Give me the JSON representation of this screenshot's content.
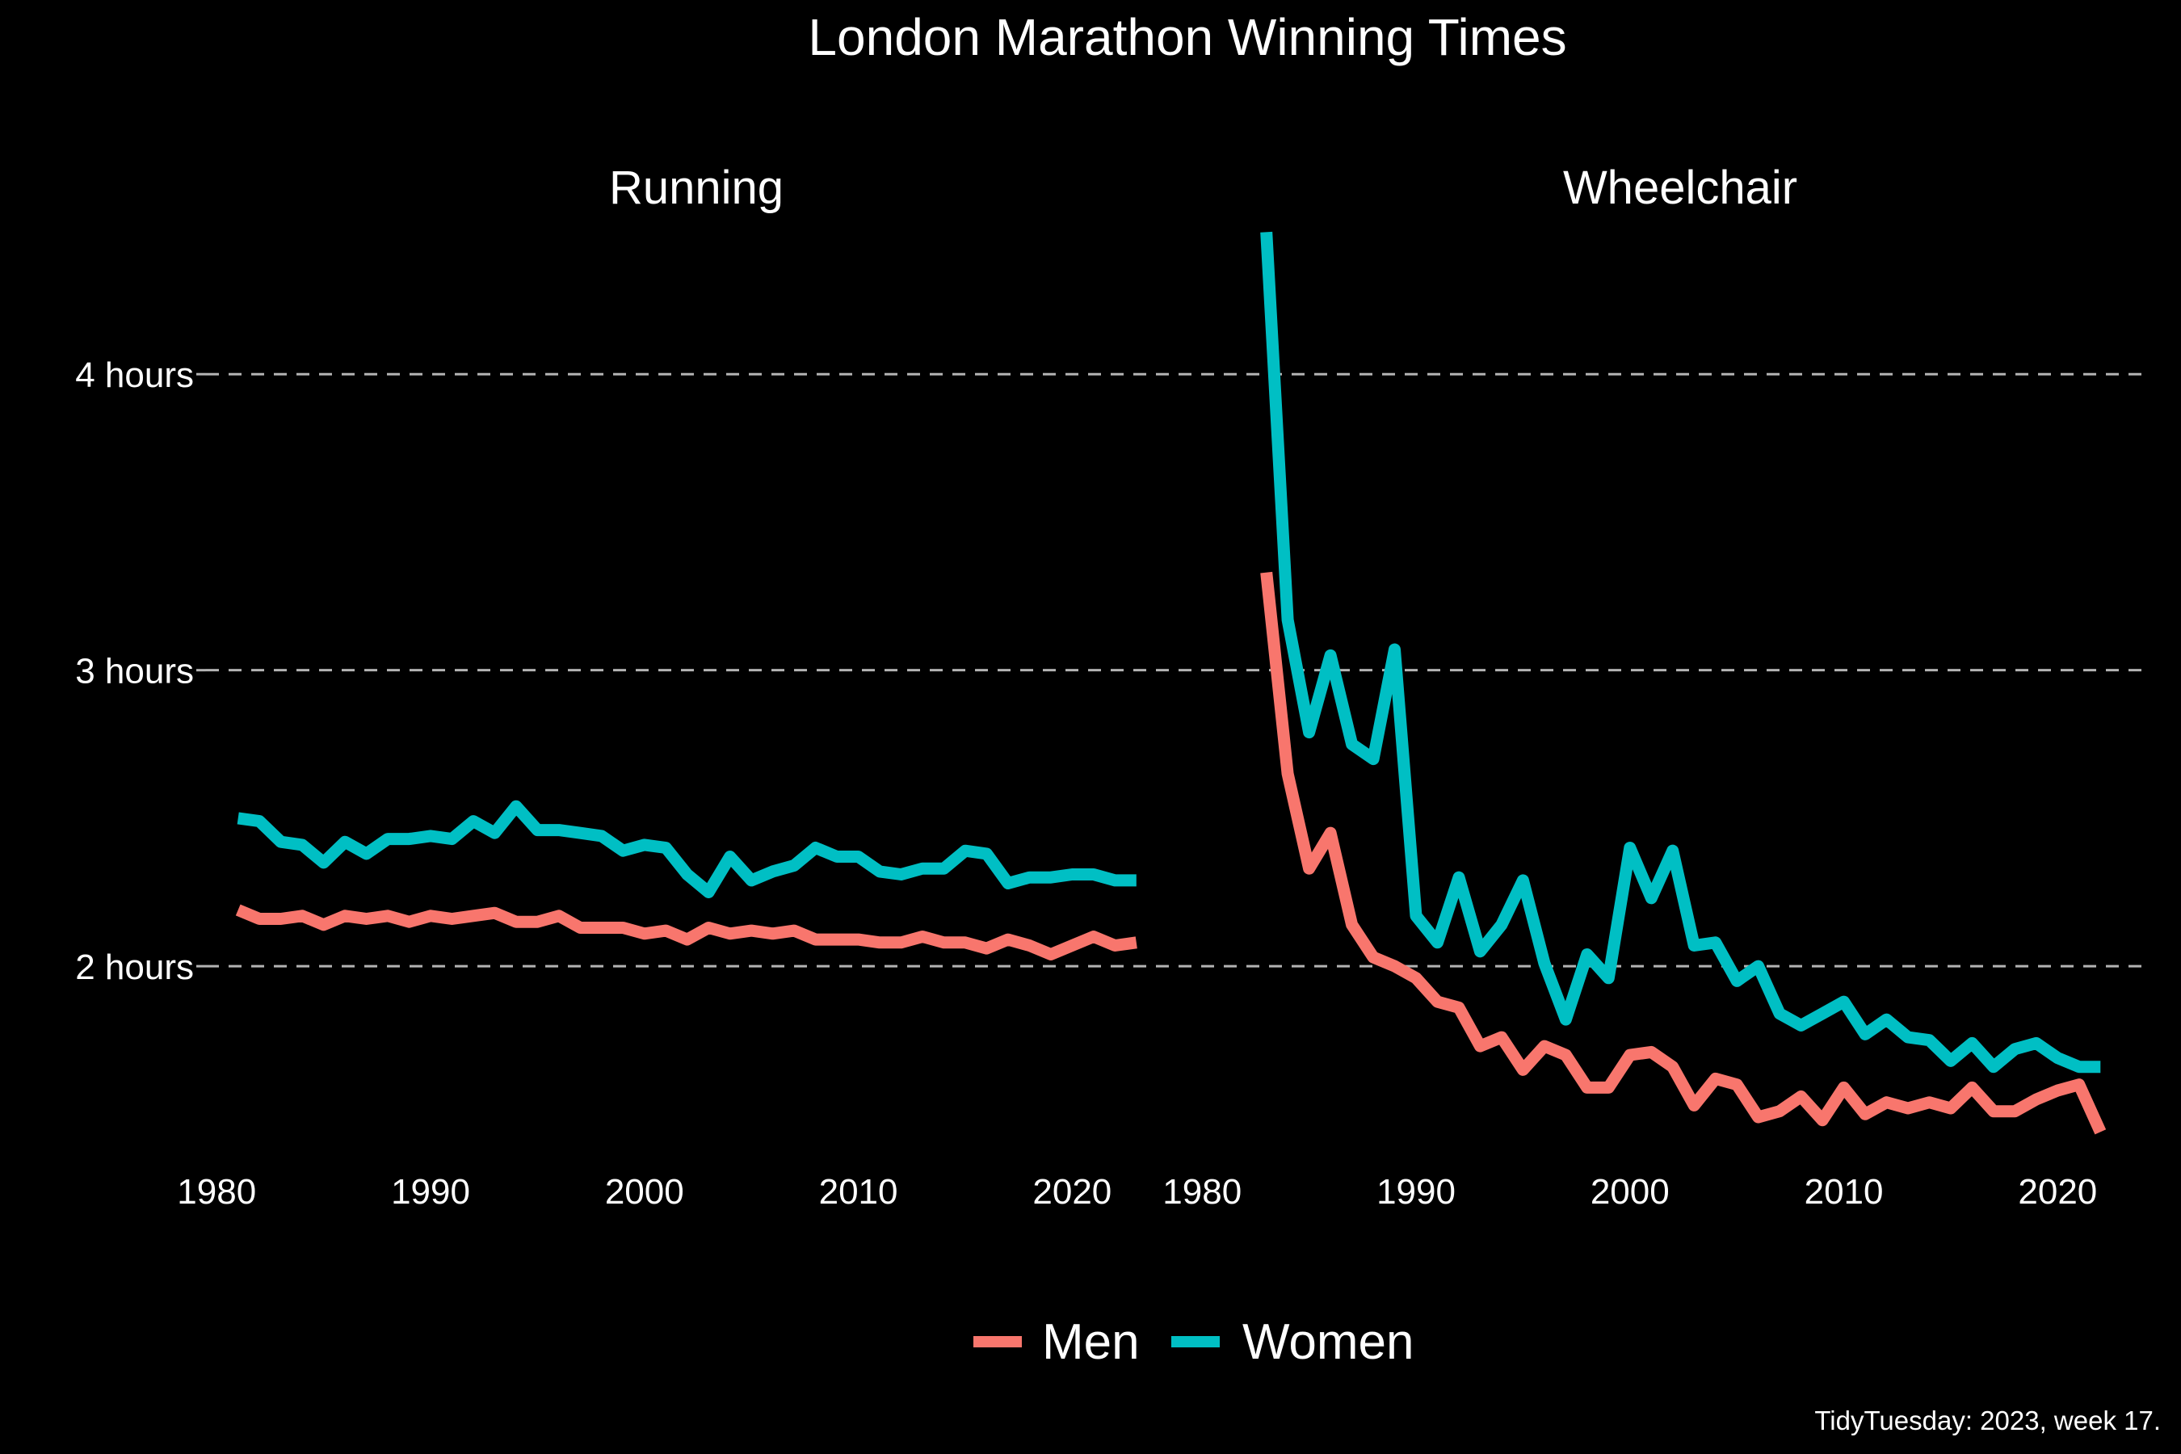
{
  "chart_data": {
    "type": "line",
    "title": "London Marathon Winning Times",
    "caption": "TidyTuesday: 2023, week 17.",
    "y_tick_labels": [
      "2 hours",
      "3 hours",
      "4 hours"
    ],
    "y_ticks": [
      2,
      3,
      4
    ],
    "ylim": [
      1.43,
      4.5
    ],
    "x_ticks": [
      1980,
      1990,
      2000,
      2010,
      2020
    ],
    "grid": "horizontal dashed",
    "legend_position": "bottom",
    "legend": [
      {
        "name": "Men",
        "color": "#F8766D"
      },
      {
        "name": "Women",
        "color": "#00BFC4"
      }
    ],
    "panels": [
      {
        "title": "Running",
        "xlim": [
          1979.5,
          2023.5
        ],
        "series": [
          {
            "name": "Men",
            "color": "#F8766D",
            "x": [
              1981,
              1982,
              1983,
              1984,
              1985,
              1986,
              1987,
              1988,
              1989,
              1990,
              1991,
              1992,
              1993,
              1994,
              1995,
              1996,
              1997,
              1998,
              1999,
              2000,
              2001,
              2002,
              2003,
              2004,
              2005,
              2006,
              2007,
              2008,
              2009,
              2010,
              2011,
              2012,
              2013,
              2014,
              2015,
              2016,
              2017,
              2018,
              2019,
              2020,
              2021,
              2022,
              2023
            ],
            "y": [
              2.19,
              2.16,
              2.16,
              2.17,
              2.14,
              2.17,
              2.16,
              2.17,
              2.15,
              2.17,
              2.16,
              2.17,
              2.18,
              2.15,
              2.15,
              2.17,
              2.13,
              2.13,
              2.13,
              2.11,
              2.12,
              2.09,
              2.13,
              2.11,
              2.12,
              2.11,
              2.12,
              2.09,
              2.09,
              2.09,
              2.08,
              2.08,
              2.1,
              2.08,
              2.08,
              2.06,
              2.09,
              2.07,
              2.04,
              2.07,
              2.1,
              2.07,
              2.08
            ]
          },
          {
            "name": "Women",
            "color": "#00BFC4",
            "x": [
              1981,
              1982,
              1983,
              1984,
              1985,
              1986,
              1987,
              1988,
              1989,
              1990,
              1991,
              1992,
              1993,
              1994,
              1995,
              1996,
              1997,
              1998,
              1999,
              2000,
              2001,
              2002,
              2003,
              2004,
              2005,
              2006,
              2007,
              2008,
              2009,
              2010,
              2011,
              2012,
              2013,
              2014,
              2015,
              2016,
              2017,
              2018,
              2019,
              2020,
              2021,
              2022,
              2023
            ],
            "y": [
              2.5,
              2.49,
              2.42,
              2.41,
              2.35,
              2.42,
              2.38,
              2.43,
              2.43,
              2.44,
              2.43,
              2.49,
              2.45,
              2.54,
              2.46,
              2.46,
              2.45,
              2.44,
              2.39,
              2.41,
              2.4,
              2.31,
              2.25,
              2.37,
              2.29,
              2.32,
              2.34,
              2.4,
              2.37,
              2.37,
              2.32,
              2.31,
              2.33,
              2.33,
              2.39,
              2.38,
              2.28,
              2.3,
              2.3,
              2.31,
              2.31,
              2.29,
              2.29
            ]
          }
        ]
      },
      {
        "title": "Wheelchair",
        "xlim": [
          1979.5,
          2023.5
        ],
        "series": [
          {
            "name": "Men",
            "color": "#F8766D",
            "x": [
              1983,
              1984,
              1985,
              1986,
              1987,
              1988,
              1989,
              1990,
              1991,
              1992,
              1993,
              1994,
              1995,
              1996,
              1997,
              1998,
              1999,
              2000,
              2001,
              2002,
              2003,
              2004,
              2005,
              2006,
              2007,
              2008,
              2009,
              2010,
              2011,
              2012,
              2013,
              2014,
              2015,
              2016,
              2017,
              2018,
              2019,
              2020,
              2021,
              2022
            ],
            "y": [
              3.33,
              2.65,
              2.33,
              2.45,
              2.14,
              2.03,
              2.0,
              1.96,
              1.88,
              1.86,
              1.73,
              1.76,
              1.65,
              1.73,
              1.7,
              1.59,
              1.59,
              1.7,
              1.71,
              1.66,
              1.53,
              1.62,
              1.6,
              1.49,
              1.51,
              1.56,
              1.48,
              1.59,
              1.5,
              1.54,
              1.52,
              1.54,
              1.52,
              1.59,
              1.51,
              1.51,
              1.55,
              1.58,
              1.6,
              1.44
            ]
          },
          {
            "name": "Women",
            "color": "#00BFC4",
            "x": [
              1983,
              1984,
              1985,
              1986,
              1987,
              1988,
              1989,
              1990,
              1991,
              1992,
              1993,
              1994,
              1995,
              1996,
              1997,
              1998,
              1999,
              2000,
              2001,
              2002,
              2003,
              2004,
              2005,
              2006,
              2007,
              2008,
              2009,
              2010,
              2011,
              2012,
              2013,
              2014,
              2015,
              2016,
              2017,
              2018,
              2019,
              2020,
              2021,
              2022
            ],
            "y": [
              4.48,
              3.17,
              2.79,
              3.05,
              2.75,
              2.7,
              3.07,
              2.17,
              2.08,
              2.3,
              2.05,
              2.14,
              2.29,
              2.01,
              1.82,
              2.04,
              1.96,
              2.4,
              2.23,
              2.39,
              2.07,
              2.08,
              1.95,
              2.0,
              1.84,
              1.8,
              1.84,
              1.88,
              1.77,
              1.82,
              1.76,
              1.75,
              1.68,
              1.74,
              1.66,
              1.72,
              1.74,
              1.69,
              1.66,
              1.66
            ]
          }
        ]
      }
    ]
  }
}
